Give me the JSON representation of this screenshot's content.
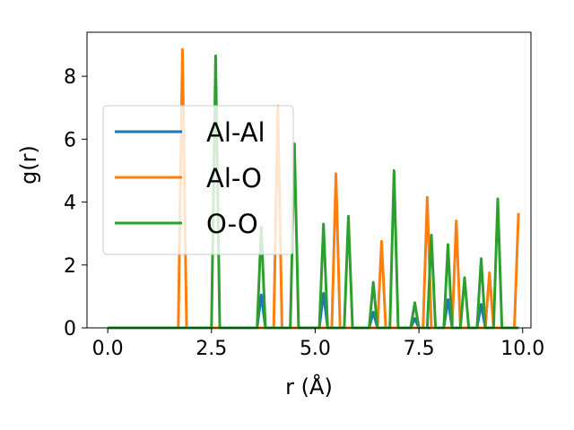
{
  "chart_data": {
    "type": "line",
    "xlabel": "r (Å)",
    "ylabel": "g(r)",
    "xlim": [
      -0.5,
      10.2
    ],
    "ylim": [
      0,
      9.4
    ],
    "xticks": [
      0.0,
      2.5,
      5.0,
      7.5,
      10.0
    ],
    "xtick_labels": [
      "0.0",
      "2.5",
      "5.0",
      "7.5",
      "10.0"
    ],
    "yticks": [
      0,
      2,
      4,
      6,
      8
    ],
    "ytick_labels": [
      "0",
      "2",
      "4",
      "6",
      "8"
    ],
    "grid": false,
    "legend": {
      "position": "center-left",
      "entries": [
        "Al-Al",
        "Al-O",
        "O-O"
      ]
    },
    "series": [
      {
        "name": "Al-Al",
        "color": "#1f77b4",
        "points": [
          [
            0,
            0
          ],
          [
            3.6,
            0
          ],
          [
            3.7,
            1.05
          ],
          [
            3.8,
            0
          ],
          [
            5.1,
            0
          ],
          [
            5.2,
            1.1
          ],
          [
            5.3,
            0
          ],
          [
            6.3,
            0
          ],
          [
            6.4,
            0.5
          ],
          [
            6.5,
            0
          ],
          [
            7.3,
            0
          ],
          [
            7.4,
            0.3
          ],
          [
            7.5,
            0
          ],
          [
            8.1,
            0
          ],
          [
            8.2,
            0.9
          ],
          [
            8.3,
            0
          ],
          [
            8.9,
            0
          ],
          [
            9.0,
            0.75
          ],
          [
            9.1,
            0
          ],
          [
            9.9,
            0
          ]
        ]
      },
      {
        "name": "Al-O",
        "color": "#ff7f0e",
        "points": [
          [
            0,
            0
          ],
          [
            1.7,
            0
          ],
          [
            1.8,
            8.85
          ],
          [
            1.9,
            0
          ],
          [
            4.0,
            0
          ],
          [
            4.1,
            7.05
          ],
          [
            4.2,
            0
          ],
          [
            5.4,
            0
          ],
          [
            5.5,
            4.9
          ],
          [
            5.6,
            0
          ],
          [
            6.5,
            0
          ],
          [
            6.6,
            2.75
          ],
          [
            6.7,
            0
          ],
          [
            7.6,
            0
          ],
          [
            7.7,
            4.15
          ],
          [
            7.8,
            0
          ],
          [
            8.3,
            0
          ],
          [
            8.4,
            3.4
          ],
          [
            8.5,
            0
          ],
          [
            9.1,
            0
          ],
          [
            9.2,
            1.75
          ],
          [
            9.3,
            0
          ],
          [
            9.8,
            0
          ],
          [
            9.9,
            3.65
          ]
        ]
      },
      {
        "name": "O-O",
        "color": "#2ca02c",
        "points": [
          [
            0,
            0
          ],
          [
            2.5,
            0
          ],
          [
            2.6,
            8.65
          ],
          [
            2.7,
            0
          ],
          [
            3.6,
            0
          ],
          [
            3.7,
            3.2
          ],
          [
            3.8,
            0
          ],
          [
            4.4,
            0
          ],
          [
            4.5,
            5.85
          ],
          [
            4.6,
            0
          ],
          [
            5.1,
            0
          ],
          [
            5.2,
            3.3
          ],
          [
            5.3,
            0
          ],
          [
            5.7,
            0
          ],
          [
            5.8,
            3.55
          ],
          [
            5.9,
            0
          ],
          [
            6.3,
            0
          ],
          [
            6.4,
            1.45
          ],
          [
            6.5,
            0
          ],
          [
            6.8,
            0
          ],
          [
            6.9,
            5.0
          ],
          [
            7.0,
            0
          ],
          [
            7.3,
            0
          ],
          [
            7.4,
            0.8
          ],
          [
            7.5,
            0
          ],
          [
            7.7,
            0
          ],
          [
            7.8,
            2.95
          ],
          [
            7.9,
            0
          ],
          [
            8.1,
            0
          ],
          [
            8.2,
            2.65
          ],
          [
            8.3,
            0
          ],
          [
            8.5,
            0
          ],
          [
            8.6,
            1.6
          ],
          [
            8.7,
            0
          ],
          [
            8.9,
            0
          ],
          [
            9.0,
            2.2
          ],
          [
            9.1,
            0
          ],
          [
            9.3,
            0
          ],
          [
            9.4,
            4.1
          ],
          [
            9.5,
            0
          ],
          [
            9.9,
            0
          ]
        ]
      }
    ]
  }
}
